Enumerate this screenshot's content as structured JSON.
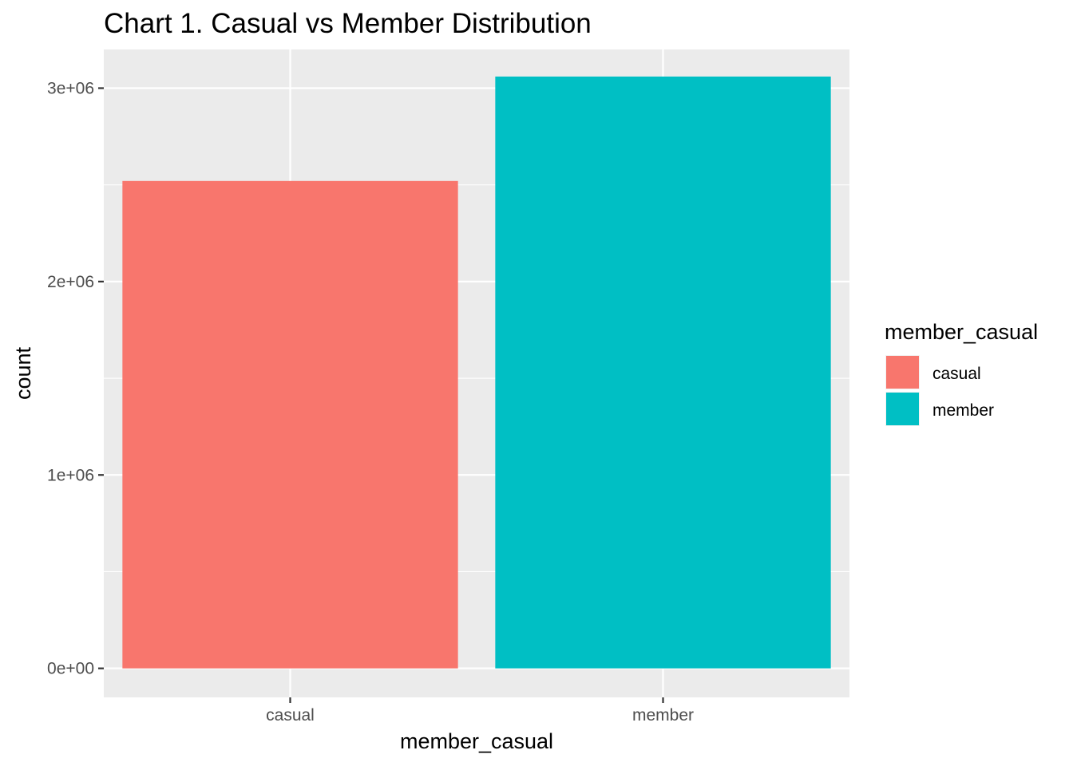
{
  "chart_data": {
    "type": "bar",
    "title": "Chart 1. Casual vs Member Distribution",
    "xlabel": "member_casual",
    "ylabel": "count",
    "categories": [
      "casual",
      "member"
    ],
    "values": [
      2520000,
      3060000
    ],
    "colors": [
      "#F8766D",
      "#00BFC4"
    ],
    "ylim": [
      -150000,
      3200000
    ],
    "yticks": [
      {
        "value": 0,
        "label": "0e+00"
      },
      {
        "value": 1000000,
        "label": "1e+06"
      },
      {
        "value": 2000000,
        "label": "2e+06"
      },
      {
        "value": 3000000,
        "label": "3e+06"
      }
    ],
    "grid": true,
    "panel_background": "#EBEBEB",
    "legend": {
      "title": "member_casual",
      "placement": "right",
      "items": [
        {
          "label": "casual",
          "color": "#F8766D"
        },
        {
          "label": "member",
          "color": "#00BFC4"
        }
      ]
    }
  }
}
